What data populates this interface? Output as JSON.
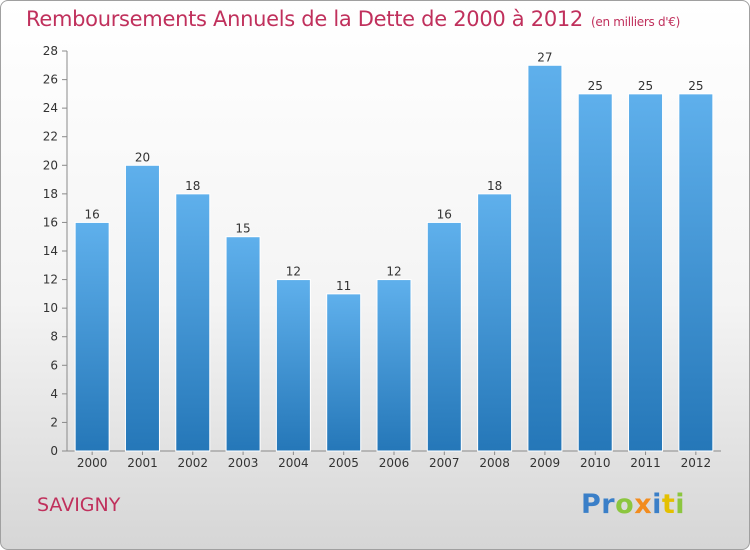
{
  "header": {
    "title": "Remboursements Annuels de la Dette de 2000 à 2012",
    "unit": "(en milliers d'€)"
  },
  "footer": {
    "commune": "SAVIGNY",
    "logo_letters": [
      {
        "ch": "P",
        "color": "#3a7fc8"
      },
      {
        "ch": "r",
        "color": "#3a7fc8"
      },
      {
        "ch": "o",
        "color": "#8cc63f"
      },
      {
        "ch": "x",
        "color": "#f28c1e"
      },
      {
        "ch": "i",
        "color": "#3a7fc8"
      },
      {
        "ch": "t",
        "color": "#e4c000"
      },
      {
        "ch": "i",
        "color": "#8cc63f"
      }
    ]
  },
  "chart_data": {
    "type": "bar",
    "title": "Remboursements Annuels de la Dette de 2000 à 2012",
    "xlabel": "",
    "ylabel": "",
    "categories": [
      "2000",
      "2001",
      "2002",
      "2003",
      "2004",
      "2005",
      "2006",
      "2007",
      "2008",
      "2009",
      "2010",
      "2011",
      "2012"
    ],
    "values": [
      16,
      20,
      18,
      15,
      12,
      11,
      12,
      16,
      18,
      27,
      25,
      25,
      25
    ],
    "ylim": [
      0,
      28
    ],
    "yticks": [
      0,
      2,
      4,
      6,
      8,
      10,
      12,
      14,
      16,
      18,
      20,
      22,
      24,
      26,
      28
    ],
    "grid": false,
    "legend": "none",
    "bar_color_top": "#5fb0ec",
    "bar_color_bottom": "#2577b8"
  }
}
